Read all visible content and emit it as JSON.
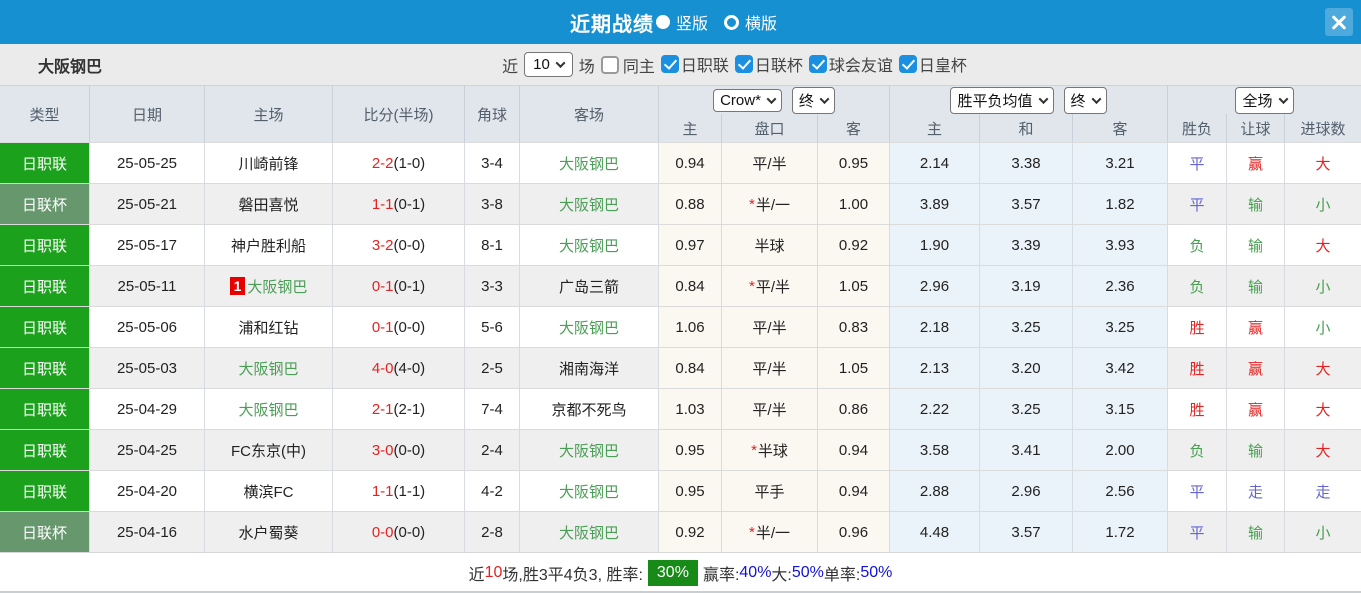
{
  "title_bar": {
    "title": "近期战绩",
    "radio_vertical": "竖版",
    "radio_horizontal": "横版"
  },
  "filter_bar": {
    "team": "大阪钢巴",
    "recent_label": "近",
    "count": "10",
    "matches_label": "场",
    "same_home": {
      "label": "同主",
      "checked": false
    },
    "leagues": [
      {
        "label": "日职联",
        "checked": true
      },
      {
        "label": "日联杯",
        "checked": true
      },
      {
        "label": "球会友谊",
        "checked": true
      },
      {
        "label": "日皇杯",
        "checked": true
      }
    ]
  },
  "table": {
    "headers": [
      "类型",
      "日期",
      "主场",
      "比分(半场)",
      "角球",
      "客场"
    ],
    "dropdowns": {
      "company": "Crow*",
      "final1": "终",
      "avg": "胜平负均值",
      "final2": "终",
      "scope": "全场"
    },
    "subheaders": [
      "主",
      "盘口",
      "客",
      "主",
      "和",
      "客",
      "胜负",
      "让球",
      "进球数"
    ],
    "rows": [
      {
        "type": "日职联",
        "type_style": "bright",
        "date": "25-05-25",
        "home": "川崎前锋",
        "home_subject": false,
        "marker": "",
        "score_ft": "2-2",
        "score_ht": "(1-0)",
        "corner": "3-4",
        "away": "大阪钢巴",
        "away_subject": true,
        "let_home": "0.94",
        "pankou_star": false,
        "pankou": "平/半",
        "let_away": "0.95",
        "odds": [
          "2.14",
          "3.38",
          "3.21"
        ],
        "spf": {
          "t": "平",
          "c": "blue"
        },
        "rq": {
          "t": "赢",
          "c": "red"
        },
        "jq": {
          "t": "大",
          "c": "red"
        }
      },
      {
        "type": "日联杯",
        "type_style": "muted",
        "date": "25-05-21",
        "home": "磐田喜悦",
        "home_subject": false,
        "marker": "",
        "score_ft": "1-1",
        "score_ht": "(0-1)",
        "corner": "3-8",
        "away": "大阪钢巴",
        "away_subject": true,
        "let_home": "0.88",
        "pankou_star": true,
        "pankou": "半/一",
        "let_away": "1.00",
        "odds": [
          "3.89",
          "3.57",
          "1.82"
        ],
        "spf": {
          "t": "平",
          "c": "blue"
        },
        "rq": {
          "t": "输",
          "c": "green"
        },
        "jq": {
          "t": "小",
          "c": "green"
        }
      },
      {
        "type": "日职联",
        "type_style": "bright",
        "date": "25-05-17",
        "home": "神户胜利船",
        "home_subject": false,
        "marker": "",
        "score_ft": "3-2",
        "score_ht": "(0-0)",
        "corner": "8-1",
        "away": "大阪钢巴",
        "away_subject": true,
        "let_home": "0.97",
        "pankou_star": false,
        "pankou": "半球",
        "let_away": "0.92",
        "odds": [
          "1.90",
          "3.39",
          "3.93"
        ],
        "spf": {
          "t": "负",
          "c": "green"
        },
        "rq": {
          "t": "输",
          "c": "green"
        },
        "jq": {
          "t": "大",
          "c": "red"
        }
      },
      {
        "type": "日职联",
        "type_style": "bright",
        "date": "25-05-11",
        "home": "大阪钢巴",
        "home_subject": true,
        "marker": "1",
        "score_ft": "0-1",
        "score_ht": "(0-1)",
        "corner": "3-3",
        "away": "广岛三箭",
        "away_subject": false,
        "let_home": "0.84",
        "pankou_star": true,
        "pankou": "平/半",
        "let_away": "1.05",
        "odds": [
          "2.96",
          "3.19",
          "2.36"
        ],
        "spf": {
          "t": "负",
          "c": "green"
        },
        "rq": {
          "t": "输",
          "c": "green"
        },
        "jq": {
          "t": "小",
          "c": "green"
        }
      },
      {
        "type": "日职联",
        "type_style": "bright",
        "date": "25-05-06",
        "home": "浦和红钻",
        "home_subject": false,
        "marker": "",
        "score_ft": "0-1",
        "score_ht": "(0-0)",
        "corner": "5-6",
        "away": "大阪钢巴",
        "away_subject": true,
        "let_home": "1.06",
        "pankou_star": false,
        "pankou": "平/半",
        "let_away": "0.83",
        "odds": [
          "2.18",
          "3.25",
          "3.25"
        ],
        "spf": {
          "t": "胜",
          "c": "red"
        },
        "rq": {
          "t": "赢",
          "c": "red"
        },
        "jq": {
          "t": "小",
          "c": "green"
        }
      },
      {
        "type": "日职联",
        "type_style": "bright",
        "date": "25-05-03",
        "home": "大阪钢巴",
        "home_subject": true,
        "marker": "",
        "score_ft": "4-0",
        "score_ht": "(4-0)",
        "corner": "2-5",
        "away": "湘南海洋",
        "away_subject": false,
        "let_home": "0.84",
        "pankou_star": false,
        "pankou": "平/半",
        "let_away": "1.05",
        "odds": [
          "2.13",
          "3.20",
          "3.42"
        ],
        "spf": {
          "t": "胜",
          "c": "red"
        },
        "rq": {
          "t": "赢",
          "c": "red"
        },
        "jq": {
          "t": "大",
          "c": "red"
        }
      },
      {
        "type": "日职联",
        "type_style": "bright",
        "date": "25-04-29",
        "home": "大阪钢巴",
        "home_subject": true,
        "marker": "",
        "score_ft": "2-1",
        "score_ht": "(2-1)",
        "corner": "7-4",
        "away": "京都不死鸟",
        "away_subject": false,
        "let_home": "1.03",
        "pankou_star": false,
        "pankou": "平/半",
        "let_away": "0.86",
        "odds": [
          "2.22",
          "3.25",
          "3.15"
        ],
        "spf": {
          "t": "胜",
          "c": "red"
        },
        "rq": {
          "t": "赢",
          "c": "red"
        },
        "jq": {
          "t": "大",
          "c": "red"
        }
      },
      {
        "type": "日职联",
        "type_style": "bright",
        "date": "25-04-25",
        "home": "FC东京(中)",
        "home_subject": false,
        "marker": "",
        "score_ft": "3-0",
        "score_ht": "(0-0)",
        "corner": "2-4",
        "away": "大阪钢巴",
        "away_subject": true,
        "let_home": "0.95",
        "pankou_star": true,
        "pankou": "半球",
        "let_away": "0.94",
        "odds": [
          "3.58",
          "3.41",
          "2.00"
        ],
        "spf": {
          "t": "负",
          "c": "green"
        },
        "rq": {
          "t": "输",
          "c": "green"
        },
        "jq": {
          "t": "大",
          "c": "red"
        }
      },
      {
        "type": "日职联",
        "type_style": "bright",
        "date": "25-04-20",
        "home": "横滨FC",
        "home_subject": false,
        "marker": "",
        "score_ft": "1-1",
        "score_ht": "(1-1)",
        "corner": "4-2",
        "away": "大阪钢巴",
        "away_subject": true,
        "let_home": "0.95",
        "pankou_star": false,
        "pankou": "平手",
        "let_away": "0.94",
        "odds": [
          "2.88",
          "2.96",
          "2.56"
        ],
        "spf": {
          "t": "平",
          "c": "blue"
        },
        "rq": {
          "t": "走",
          "c": "blue"
        },
        "jq": {
          "t": "走",
          "c": "blue"
        }
      },
      {
        "type": "日联杯",
        "type_style": "muted",
        "date": "25-04-16",
        "home": "水户蜀葵",
        "home_subject": false,
        "marker": "",
        "score_ft": "0-0",
        "score_ht": "(0-0)",
        "corner": "2-8",
        "away": "大阪钢巴",
        "away_subject": true,
        "let_home": "0.92",
        "pankou_star": true,
        "pankou": "半/一",
        "let_away": "0.96",
        "odds": [
          "4.48",
          "3.57",
          "1.72"
        ],
        "spf": {
          "t": "平",
          "c": "blue"
        },
        "rq": {
          "t": "输",
          "c": "green"
        },
        "jq": {
          "t": "小",
          "c": "green"
        }
      }
    ]
  },
  "footer": {
    "segments": [
      {
        "text": "近",
        "style": "dark"
      },
      {
        "text": "10",
        "style": "red"
      },
      {
        "text": "场,胜3平4负3, 胜率:",
        "style": "dark"
      },
      {
        "text": "30%",
        "style": "badge"
      },
      {
        "text": " 赢率:",
        "style": "dark"
      },
      {
        "text": "40%",
        "style": "blue"
      },
      {
        "text": " 大:",
        "style": "dark"
      },
      {
        "text": "50%",
        "style": "blue"
      },
      {
        "text": " 单率:",
        "style": "dark"
      },
      {
        "text": "50%",
        "style": "blue"
      }
    ]
  },
  "colors": {
    "titlebar_blue": "#1690d0",
    "close_button_blue": "#4ea9dd",
    "league_badge_green": "#1ba11b",
    "cup_badge_green": "#66976d",
    "subject_team_green": "#4a9e55",
    "result_red": "#e52222",
    "result_green": "#46a050",
    "result_blue": "#6363d1",
    "footer_value_blue": "#1111dd",
    "win_rate_badge_green": "#178a17",
    "handicap_col_bg": "#fbf7f1",
    "odds_col_bg": "#eaf3f9",
    "checkbox_blue": "#1b8fe0"
  }
}
